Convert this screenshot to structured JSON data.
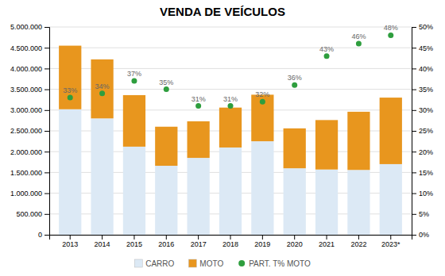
{
  "chart_data": {
    "type": "bar",
    "title": "VENDA DE VEÍCULOS",
    "categories": [
      "2013",
      "2014",
      "2015",
      "2016",
      "2017",
      "2018",
      "2019",
      "2020",
      "2021",
      "2022",
      "2023*"
    ],
    "stacked": true,
    "grid": true,
    "legend": "bottom",
    "series": [
      {
        "name": "CARRO",
        "type": "bar",
        "color": "#dce9f5",
        "values": [
          3020000,
          2800000,
          2120000,
          1660000,
          1850000,
          2100000,
          2250000,
          1600000,
          1570000,
          1560000,
          1700000
        ]
      },
      {
        "name": "MOTO",
        "type": "bar",
        "color": "#e8961e",
        "values": [
          1530000,
          1420000,
          1240000,
          940000,
          880000,
          960000,
          1120000,
          960000,
          1190000,
          1400000,
          1600000
        ]
      },
      {
        "name": "PART. T% MOTO",
        "type": "scatter",
        "axis": "y2",
        "color": "#2e9e3e",
        "data_labels": true,
        "values": [
          0.33,
          0.34,
          0.37,
          0.35,
          0.31,
          0.31,
          0.32,
          0.36,
          0.43,
          0.46,
          0.48
        ],
        "value_labels": [
          "33%",
          "34%",
          "37%",
          "35%",
          "31%",
          "31%",
          "32%",
          "36%",
          "43%",
          "46%",
          "48%"
        ]
      }
    ],
    "ylim": [
      0,
      5000000
    ],
    "yticks": [
      0,
      {
        "value": 500000,
        "label": "500.000"
      },
      {
        "value": 1000000,
        "label": "1.000.000"
      },
      {
        "value": 1500000,
        "label": "1.500.000"
      },
      {
        "value": 2000000,
        "label": "2.000.000"
      },
      {
        "value": 2500000,
        "label": "2.500.000"
      },
      {
        "value": 3000000,
        "label": "3.000.000"
      },
      {
        "value": 3500000,
        "label": "3.500.000"
      },
      {
        "value": 4000000,
        "label": "4.000.000"
      },
      {
        "value": 4500000,
        "label": "4.500.000"
      },
      {
        "value": 5000000,
        "label": "5.000.000"
      }
    ],
    "y2lim": [
      0,
      0.5
    ],
    "y2ticks": [
      {
        "value": 0,
        "label": "0%"
      },
      {
        "value": 0.05,
        "label": "5%"
      },
      {
        "value": 0.1,
        "label": "10%"
      },
      {
        "value": 0.15,
        "label": "15%"
      },
      {
        "value": 0.2,
        "label": "20%"
      },
      {
        "value": 0.25,
        "label": "25%"
      },
      {
        "value": 0.3,
        "label": "30%"
      },
      {
        "value": 0.35,
        "label": "35%"
      },
      {
        "value": 0.4,
        "label": "40%"
      },
      {
        "value": 0.45,
        "label": "45%"
      },
      {
        "value": 0.5,
        "label": "50%"
      }
    ]
  }
}
